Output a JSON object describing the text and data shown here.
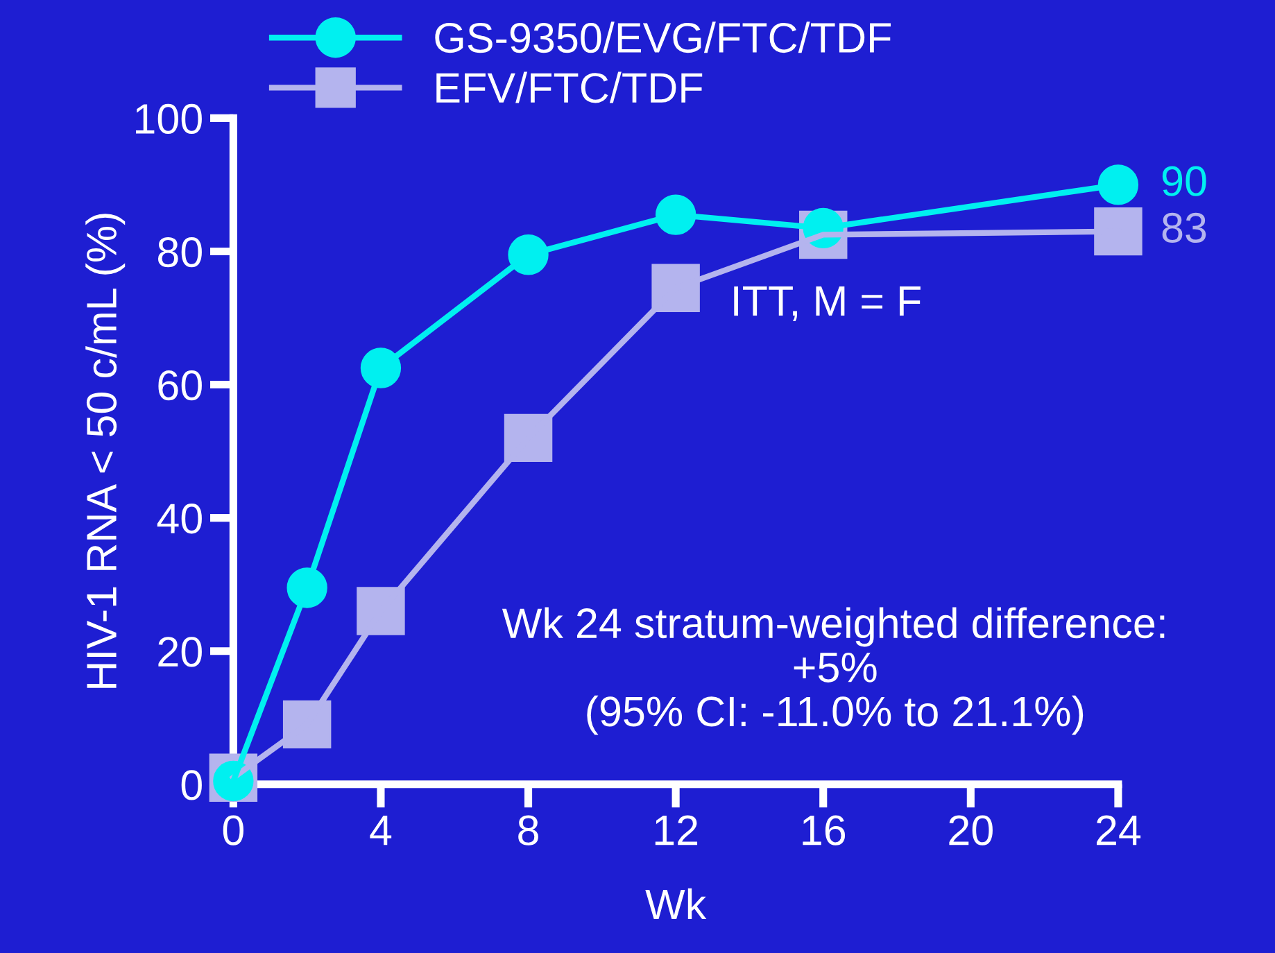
{
  "chart_data": {
    "type": "line",
    "xlabel": "Wk",
    "ylabel": "HIV-1 RNA < 50 c/mL (%)",
    "x": [
      0,
      2,
      4,
      8,
      12,
      16,
      24
    ],
    "series": [
      {
        "name": "GS-9350/EVG/FTC/TDF",
        "color": "#00f0f0",
        "marker": "circle",
        "values": [
          0.5,
          29.5,
          62.5,
          79.5,
          85.5,
          83.5,
          90
        ],
        "value_labels": [
          null,
          null,
          null,
          null,
          null,
          null,
          "90"
        ]
      },
      {
        "name": "EFV/FTC/TDF",
        "color": "#b4b4ee",
        "marker": "square",
        "values": [
          1,
          9,
          26,
          52,
          74.5,
          82.5,
          83
        ],
        "value_labels": [
          null,
          null,
          null,
          null,
          null,
          null,
          "83"
        ]
      }
    ],
    "xlim": [
      0,
      24
    ],
    "xticks": [
      0,
      4,
      8,
      12,
      16,
      20,
      24
    ],
    "ylim": [
      0,
      100
    ],
    "yticks": [
      0,
      20,
      40,
      60,
      80,
      100
    ],
    "annotations": [
      {
        "text": "ITT, M = F"
      },
      {
        "text": "Wk 24 stratum-weighted difference:\n+5%\n(95% CI: -11.0% to 21.1%)"
      }
    ],
    "grid": false,
    "legend": "top",
    "line_style": "solid"
  }
}
